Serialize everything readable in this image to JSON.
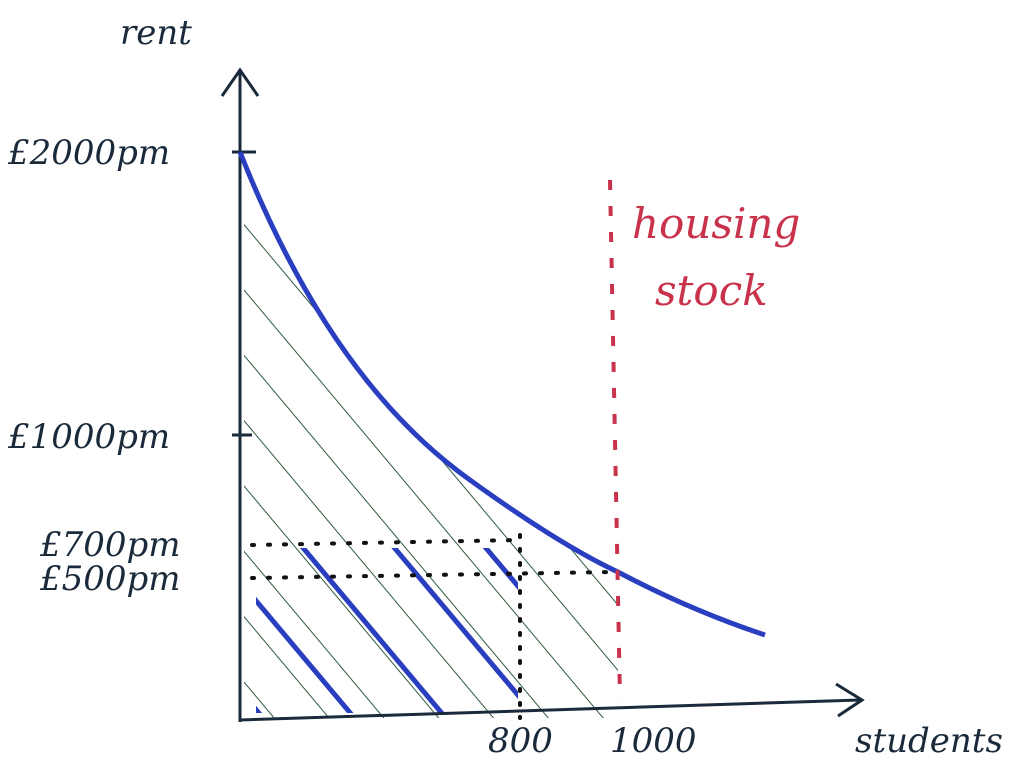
{
  "axes": {
    "y_label": "rent",
    "x_label": "students"
  },
  "y_ticks": [
    "£2000pm",
    "£1000pm",
    "£700pm",
    "£500pm"
  ],
  "x_ticks": [
    "800",
    "1000"
  ],
  "annotation": [
    "housing",
    "stock"
  ]
}
